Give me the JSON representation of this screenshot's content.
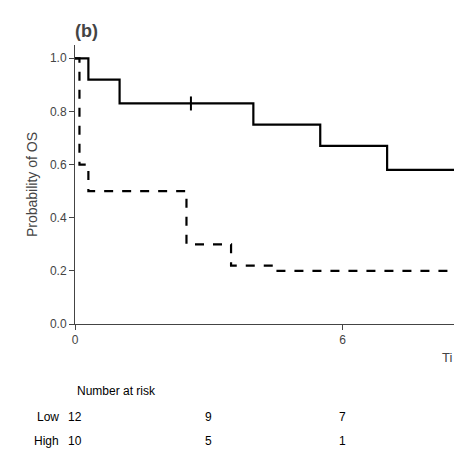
{
  "chart_data": {
    "type": "step",
    "title": "(b)",
    "y_label": "Probability of OS",
    "x_label": "Ti",
    "xlim": [
      0,
      8.5
    ],
    "ylim": [
      0.0,
      1.05
    ],
    "xticks": [
      0,
      6
    ],
    "yticks": [
      {
        "value": 0.0,
        "label": "0.0"
      },
      0.2,
      0.4,
      0.6,
      0.8,
      {
        "value": 1.0,
        "label": "1.0"
      }
    ],
    "grid": false,
    "risk_label": "Number at risk",
    "risk_x": [
      0,
      3,
      6
    ],
    "series": [
      {
        "name": "Low",
        "color": "#000000",
        "line_style": "solid",
        "x": [
          0,
          0.15,
          0.3,
          0.5,
          1.0,
          1.5,
          2.5,
          3.5,
          4.0,
          5.0,
          5.5,
          6.0,
          7.0,
          8.5
        ],
        "values": [
          1.0,
          1.0,
          0.92,
          0.92,
          0.83,
          0.83,
          0.83,
          0.83,
          0.75,
          0.75,
          0.67,
          0.67,
          0.58,
          0.58
        ],
        "censor_x": [
          2.6
        ],
        "censor_y": [
          0.83
        ],
        "at_risk": [
          12,
          9,
          7
        ]
      },
      {
        "name": "High",
        "color": "#000000",
        "line_style": "dashed",
        "x": [
          0,
          0.1,
          0.1,
          0.3,
          0.3,
          1.0,
          1.0,
          2.5,
          2.5,
          3.5,
          3.5,
          4.5,
          4.5,
          8.5
        ],
        "values": [
          1.0,
          1.0,
          0.6,
          0.6,
          0.5,
          0.5,
          0.5,
          0.5,
          0.3,
          0.3,
          0.22,
          0.22,
          0.2,
          0.2
        ],
        "at_risk": [
          10,
          5,
          1
        ]
      }
    ]
  }
}
